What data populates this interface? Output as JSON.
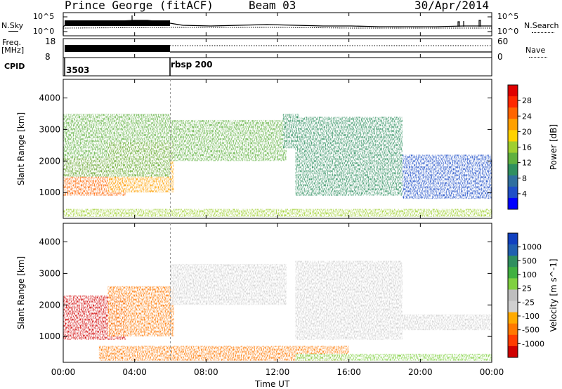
{
  "header": {
    "station": "Prince George (fitACF)",
    "beam": "Beam 03",
    "date": "30/Apr/2014"
  },
  "top_panels": {
    "nsky_label": "N.Sky",
    "nsky_ticks": [
      "10^5",
      "10^0"
    ],
    "nsearch_label": "N.Search",
    "nsearch_ticks": [
      "10^5",
      "10^0"
    ],
    "freq_label_line1": "Freq.",
    "freq_label_line2": "[MHz]",
    "freq_ticks": [
      "18",
      "8"
    ],
    "nave_label": "Nave",
    "nave_ticks": [
      "60",
      "0"
    ],
    "cpid_label": "CPID",
    "cpid_segments": [
      {
        "label": "3503",
        "start_hour": 0,
        "end_hour": 6
      },
      {
        "label": "rbsp 200",
        "start_hour": 6,
        "end_hour": 24
      }
    ]
  },
  "chart_data": [
    {
      "type": "heatmap",
      "name": "Power",
      "ylabel": "Slant Range [km]",
      "ylim": [
        180,
        4590
      ],
      "y_ticks": [
        1000,
        2000,
        3000,
        4000
      ],
      "xlim_hours": [
        0,
        24
      ],
      "colorbar_label": "Power [dB]",
      "colorbar_ticks": [
        "28",
        "24",
        "20",
        "16",
        "12",
        "8",
        "4"
      ],
      "colorbar_colors": [
        "#0000ff",
        "#1f4fc8",
        "#2f6f9f",
        "#2f8f5f",
        "#5fb03f",
        "#9fcf2f",
        "#ffd200",
        "#ffa000",
        "#ff6400",
        "#ff2800",
        "#e00000"
      ],
      "color_range": [
        0,
        32
      ],
      "features": [
        {
          "desc": "near-range ground band",
          "t": [
            0,
            24
          ],
          "range": [
            230,
            480
          ],
          "value": 16
        },
        {
          "desc": "early backscatter",
          "t": [
            0,
            3.5
          ],
          "range": [
            900,
            2100
          ],
          "value": 24
        },
        {
          "desc": "rising band",
          "t": [
            2.5,
            6.2
          ],
          "range": [
            1000,
            2600
          ],
          "value": 22
        },
        {
          "desc": "scattered echoes",
          "t": [
            0,
            6
          ],
          "range": [
            1500,
            3500
          ],
          "value": 12
        },
        {
          "desc": "afternoon band",
          "t": [
            6,
            12.5
          ],
          "range": [
            2000,
            3300
          ],
          "value": 14
        },
        {
          "desc": "spike",
          "t": [
            12.3,
            13.2
          ],
          "range": [
            2400,
            3500
          ],
          "value": 10
        },
        {
          "desc": "descending band",
          "t": [
            13,
            19
          ],
          "range": [
            900,
            3400
          ],
          "value": 8
        },
        {
          "desc": "late echoes",
          "t": [
            19,
            24
          ],
          "range": [
            800,
            2200
          ],
          "value": 4
        }
      ]
    },
    {
      "type": "heatmap",
      "name": "Velocity",
      "ylabel": "Slant Range [km]",
      "ylim": [
        180,
        4590
      ],
      "y_ticks": [
        1000,
        2000,
        3000,
        4000
      ],
      "xlim_hours": [
        0,
        24
      ],
      "colorbar_label": "Velocity [m s^-1]",
      "colorbar_ticks": [
        "1000",
        "500",
        "100",
        "25",
        "-25",
        "-100",
        "-500",
        "-1000"
      ],
      "colorbar_colors": [
        "#d00000",
        "#ff3c00",
        "#ff7800",
        "#ffaa00",
        "#cfcfcf",
        "#bebebe",
        "#80d040",
        "#40b040",
        "#2f8f5f",
        "#2060b0",
        "#1040c0"
      ],
      "features": [
        {
          "desc": "early echoes",
          "t": [
            0,
            3.5
          ],
          "range": [
            900,
            2300
          ],
          "value": -500
        },
        {
          "desc": "rising band",
          "t": [
            2.5,
            6.2
          ],
          "range": [
            1000,
            2600
          ],
          "value": -100
        },
        {
          "desc": "near-range band",
          "t": [
            2,
            16
          ],
          "range": [
            230,
            700
          ],
          "value": -100
        },
        {
          "desc": "near-range band east",
          "t": [
            13,
            24
          ],
          "range": [
            230,
            450
          ],
          "value": 100
        },
        {
          "desc": "afternoon band",
          "t": [
            6,
            12.5
          ],
          "range": [
            2000,
            3300
          ],
          "value": 0
        },
        {
          "desc": "descending band",
          "t": [
            13,
            19
          ],
          "range": [
            900,
            3400
          ],
          "value": 0
        },
        {
          "desc": "late echoes",
          "t": [
            19,
            24
          ],
          "range": [
            1200,
            1700
          ],
          "value": 0
        }
      ]
    }
  ],
  "x_axis": {
    "ticks": [
      "00:00",
      "04:00",
      "08:00",
      "12:00",
      "16:00",
      "20:00",
      "00:00"
    ],
    "label": "Time UT"
  }
}
